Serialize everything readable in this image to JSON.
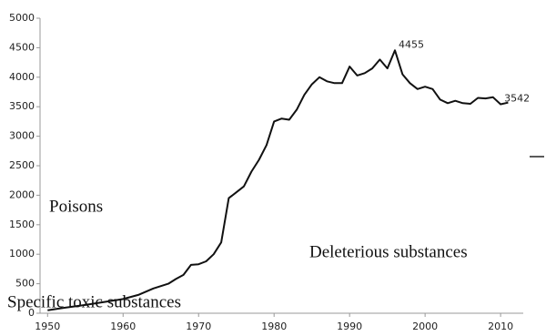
{
  "chart_data": {
    "type": "line",
    "x": [
      1950,
      1952,
      1955,
      1958,
      1960,
      1962,
      1964,
      1966,
      1967,
      1968,
      1969,
      1970,
      1971,
      1972,
      1973,
      1974,
      1975,
      1976,
      1977,
      1978,
      1979,
      1980,
      1981,
      1982,
      1983,
      1984,
      1985,
      1986,
      1987,
      1988,
      1989,
      1990,
      1991,
      1992,
      1993,
      1994,
      1995,
      1996,
      1997,
      1998,
      1999,
      2000,
      2001,
      2002,
      2003,
      2004,
      2005,
      2006,
      2007,
      2008,
      2009,
      2010,
      2011
    ],
    "series": [
      {
        "color": "#111111",
        "values": [
          50,
          90,
          140,
          200,
          240,
          310,
          420,
          500,
          580,
          650,
          820,
          830,
          880,
          1000,
          1200,
          1950,
          2050,
          2150,
          2400,
          2600,
          2850,
          3250,
          3300,
          3280,
          3450,
          3700,
          3880,
          4000,
          3930,
          3900,
          3900,
          4180,
          4030,
          4070,
          4150,
          4300,
          4150,
          4455,
          4050,
          3900,
          3800,
          3840,
          3800,
          3620,
          3560,
          3600,
          3560,
          3550,
          3650,
          3640,
          3660,
          3542,
          3570
        ]
      }
    ],
    "labeled_points": [
      37,
      51
    ],
    "annotations": [
      "Poisons",
      "Deleterious substances",
      "Specific toxic substances"
    ],
    "xlim": [
      1949,
      2013
    ],
    "xticks": [
      1950,
      1960,
      1970,
      1980,
      1990,
      2000,
      2010
    ],
    "ylim": [
      0,
      5000
    ],
    "yticks": [
      0,
      500,
      1000,
      1500,
      2000,
      2500,
      3000,
      3500,
      4000,
      4500,
      5000
    ]
  }
}
